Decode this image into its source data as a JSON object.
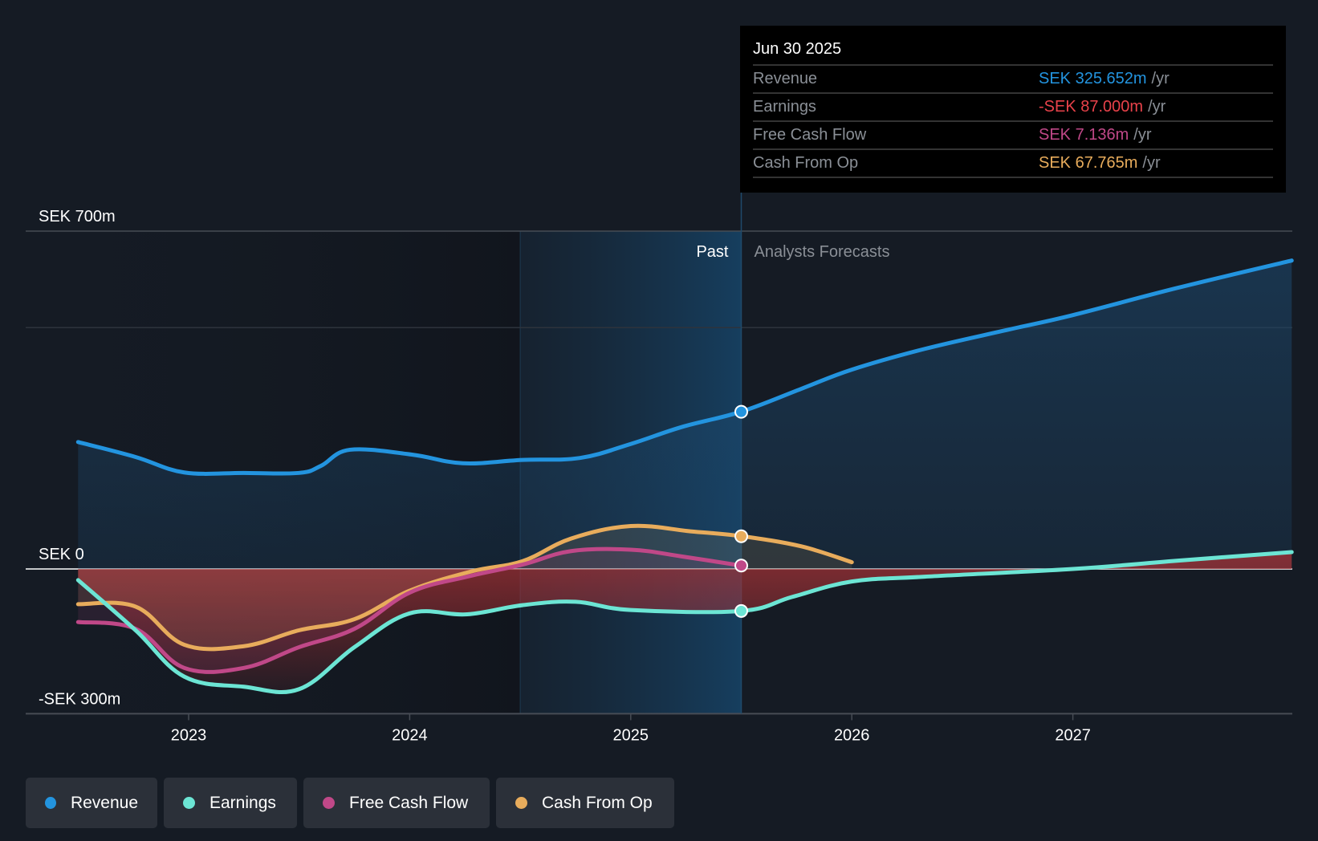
{
  "chart_data": {
    "type": "line",
    "title": "",
    "ylabel": "",
    "xlabel": "",
    "y_unit_prefix": "SEK",
    "ylim": [
      -300,
      700
    ],
    "y_ticks": [
      {
        "value": 700,
        "label": "SEK 700m"
      },
      {
        "value": 0,
        "label": "SEK 0"
      },
      {
        "value": -300,
        "label": "-SEK 300m"
      }
    ],
    "gridlines": [
      700,
      500,
      0,
      -300
    ],
    "xlim": [
      2022.25,
      2028.0
    ],
    "x_ticks": [
      {
        "value": 2023,
        "label": "2023"
      },
      {
        "value": 2024,
        "label": "2024"
      },
      {
        "value": 2025,
        "label": "2025"
      },
      {
        "value": 2026,
        "label": "2026"
      },
      {
        "value": 2027,
        "label": "2027"
      }
    ],
    "past_region_start": 2024.5,
    "divider_x": 2025.5,
    "past_label": "Past",
    "forecast_label": "Analysts Forecasts",
    "series": [
      {
        "name": "Revenue",
        "color": "#2394df",
        "points": [
          [
            2022.5,
            263
          ],
          [
            2022.76,
            232
          ],
          [
            2022.98,
            200
          ],
          [
            2023.25,
            199
          ],
          [
            2023.5,
            199
          ],
          [
            2023.6,
            214
          ],
          [
            2023.73,
            247
          ],
          [
            2024.01,
            237
          ],
          [
            2024.24,
            219
          ],
          [
            2024.51,
            226
          ],
          [
            2024.77,
            230
          ],
          [
            2025.0,
            259
          ],
          [
            2025.23,
            294
          ],
          [
            2025.5,
            326
          ],
          [
            2025.77,
            373
          ],
          [
            2026.0,
            413
          ],
          [
            2026.33,
            456
          ],
          [
            2026.71,
            496
          ],
          [
            2027.0,
            526
          ],
          [
            2027.47,
            582
          ],
          [
            2027.99,
            639
          ]
        ],
        "marker": [
          2025.5,
          325.652
        ]
      },
      {
        "name": "Earnings",
        "color": "#6ce5d4",
        "points": [
          [
            2022.5,
            -23
          ],
          [
            2022.76,
            -127
          ],
          [
            2022.98,
            -223
          ],
          [
            2023.25,
            -244
          ],
          [
            2023.5,
            -249
          ],
          [
            2023.75,
            -162
          ],
          [
            2024.0,
            -92
          ],
          [
            2024.26,
            -94
          ],
          [
            2024.51,
            -75
          ],
          [
            2024.75,
            -68
          ],
          [
            2025.0,
            -85
          ],
          [
            2025.5,
            -87
          ],
          [
            2025.73,
            -58
          ],
          [
            2026.0,
            -26
          ],
          [
            2026.33,
            -16
          ],
          [
            2027.0,
            0
          ],
          [
            2027.47,
            17
          ],
          [
            2027.99,
            35
          ]
        ],
        "marker": [
          2025.5,
          -87.0
        ]
      },
      {
        "name": "Free Cash Flow",
        "color": "#c04888",
        "points": [
          [
            2022.5,
            -110
          ],
          [
            2022.76,
            -124
          ],
          [
            2022.98,
            -205
          ],
          [
            2023.25,
            -205
          ],
          [
            2023.5,
            -162
          ],
          [
            2023.75,
            -124
          ],
          [
            2024.0,
            -49
          ],
          [
            2024.26,
            -16
          ],
          [
            2024.51,
            9
          ],
          [
            2024.73,
            37
          ],
          [
            2025.0,
            40
          ],
          [
            2025.23,
            26
          ],
          [
            2025.5,
            7
          ]
        ],
        "marker": [
          2025.5,
          7.136
        ]
      },
      {
        "name": "Cash From Op",
        "color": "#e8ac5c",
        "points": [
          [
            2022.5,
            -73
          ],
          [
            2022.76,
            -78
          ],
          [
            2022.98,
            -157
          ],
          [
            2023.25,
            -160
          ],
          [
            2023.5,
            -127
          ],
          [
            2023.75,
            -104
          ],
          [
            2024.0,
            -45
          ],
          [
            2024.28,
            -5
          ],
          [
            2024.51,
            16
          ],
          [
            2024.73,
            63
          ],
          [
            2025.0,
            89
          ],
          [
            2025.27,
            78
          ],
          [
            2025.5,
            68
          ],
          [
            2025.77,
            47
          ],
          [
            2026.0,
            14
          ]
        ],
        "marker": [
          2025.5,
          67.765
        ]
      }
    ]
  },
  "tooltip": {
    "date": "Jun 30 2025",
    "rows": [
      {
        "label": "Revenue",
        "value": "SEK 325.652m",
        "unit": "/yr",
        "color": "#2394df"
      },
      {
        "label": "Earnings",
        "value": "-SEK 87.000m",
        "unit": "/yr",
        "color": "#e8424a"
      },
      {
        "label": "Free Cash Flow",
        "value": "SEK 7.136m",
        "unit": "/yr",
        "color": "#c04888"
      },
      {
        "label": "Cash From Op",
        "value": "SEK 67.765m",
        "unit": "/yr",
        "color": "#e8ac5c"
      }
    ]
  },
  "legend": [
    {
      "label": "Revenue",
      "color": "#2394df"
    },
    {
      "label": "Earnings",
      "color": "#6ce5d4"
    },
    {
      "label": "Free Cash Flow",
      "color": "#c04888"
    },
    {
      "label": "Cash From Op",
      "color": "#e8ac5c"
    }
  ]
}
